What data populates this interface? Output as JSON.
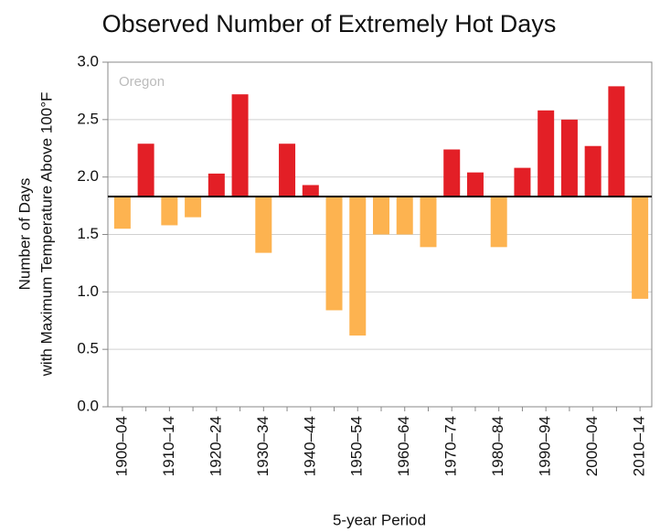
{
  "chart_data": {
    "type": "bar",
    "title": "Observed Number of Extremely Hot Days",
    "y_label_lines": [
      "Number of Days",
      "with Maximum  Temperature Above 100°F"
    ],
    "x_label": "5-year Period",
    "annotation": "Oregon",
    "categories": [
      "1900–04",
      null,
      "1910–14",
      null,
      "1920–24",
      null,
      "1930–34",
      null,
      "1940–44",
      null,
      "1950–54",
      null,
      "1960–64",
      null,
      "1970–74",
      null,
      "1980–84",
      null,
      "1990–94",
      null,
      "2000–04",
      null,
      "2010–14"
    ],
    "values": [
      1.55,
      2.29,
      1.58,
      1.65,
      2.03,
      2.72,
      1.34,
      2.29,
      1.93,
      0.84,
      0.62,
      1.5,
      1.5,
      1.39,
      2.24,
      2.04,
      1.39,
      2.08,
      2.58,
      2.5,
      2.27,
      2.79,
      0.94
    ],
    "baseline": 1.83,
    "above_color": "#e31f26",
    "below_color": "#fdb350",
    "ylim": [
      0,
      3
    ],
    "yticks": [
      {
        "value": 0,
        "label": "0.0"
      },
      {
        "value": 0.5,
        "label": "0.5"
      },
      {
        "value": 1,
        "label": "1.0"
      },
      {
        "value": 1.5,
        "label": "1.5"
      },
      {
        "value": 2,
        "label": "2.0"
      },
      {
        "value": 2.5,
        "label": "2.5"
      },
      {
        "value": 3,
        "label": "3.0"
      }
    ],
    "grid": true
  }
}
